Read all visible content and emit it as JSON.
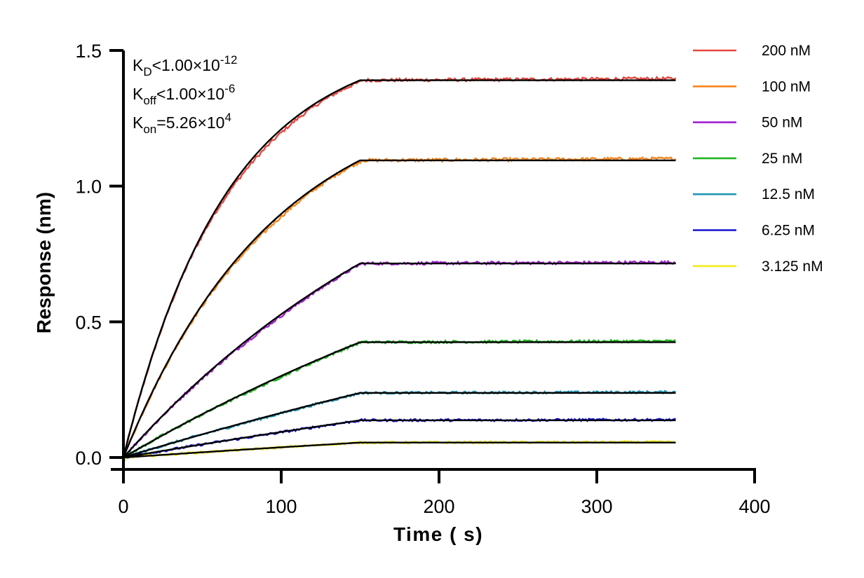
{
  "chart_data": {
    "type": "line",
    "title": "",
    "xlabel": "Time ( s)",
    "ylabel": "Response (nm)",
    "xlim": [
      0,
      400
    ],
    "ylim": [
      0,
      1.5
    ],
    "x_ticks": [
      "0",
      "100",
      "200",
      "300",
      "400"
    ],
    "y_ticks": [
      "0.0",
      "0.5",
      "1.0",
      "1.5"
    ],
    "grid": false,
    "legend_position": "right",
    "association_end_s": 150,
    "end_time_s": 350,
    "annotations": [
      {
        "base": "K",
        "sub": "D",
        "rest": "<1.00×10",
        "sup": "-12"
      },
      {
        "base": "K",
        "sub": "off",
        "rest": "<1.00×10",
        "sup": "-6"
      },
      {
        "base": "K",
        "sub": "on",
        "rest": "=5.26×10",
        "sup": "4"
      }
    ],
    "series": [
      {
        "name": "200 nM",
        "color": "#e8473f",
        "plateau": 1.39,
        "obs_offset": 0.006,
        "k_obs": 0.0152
      },
      {
        "name": "100 nM",
        "color": "#f7851f",
        "plateau": 1.095,
        "obs_offset": 0.006,
        "k_obs": 0.0105
      },
      {
        "name": "50 nM",
        "color": "#a020d0",
        "plateau": 0.715,
        "obs_offset": 0.004,
        "k_obs": 0.0045
      },
      {
        "name": "25 nM",
        "color": "#22b522",
        "plateau": 0.425,
        "obs_offset": 0.004,
        "k_obs": 0.0025
      },
      {
        "name": "12.5 nM",
        "color": "#2196b4",
        "plateau": 0.238,
        "obs_offset": 0.003,
        "k_obs": 0.0015
      },
      {
        "name": "6.25 nM",
        "color": "#1212d0",
        "plateau": 0.137,
        "obs_offset": 0.002,
        "k_obs": 0.0012
      },
      {
        "name": "3.125 nM",
        "color": "#f2ea1a",
        "plateau": 0.055,
        "obs_offset": 0.002,
        "k_obs": 0.001
      }
    ],
    "fit_color": "#000000"
  }
}
